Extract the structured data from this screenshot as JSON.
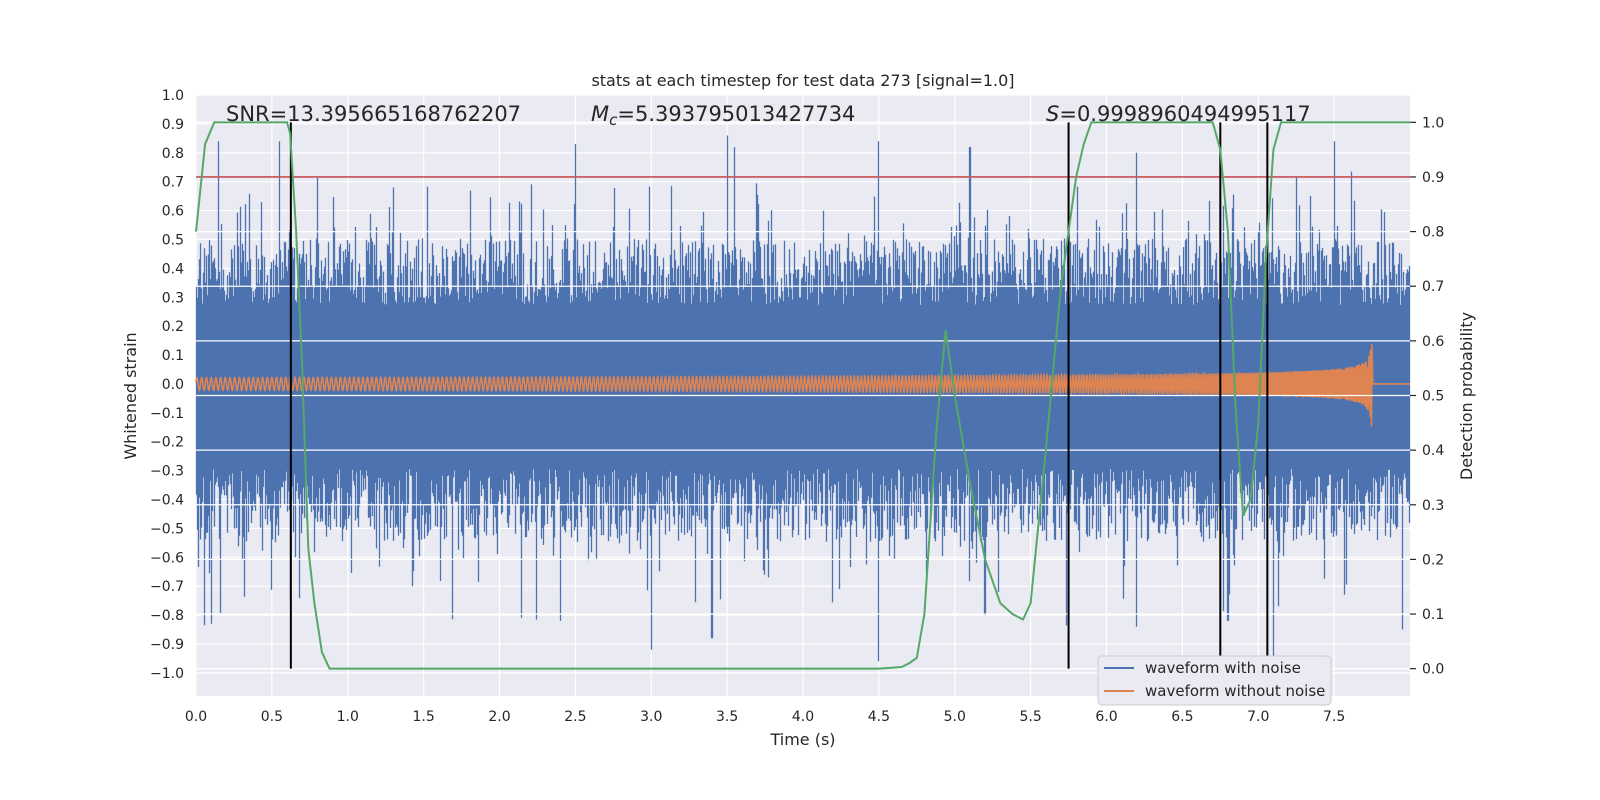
{
  "chart_data": {
    "type": "line",
    "title": "stats at each timestep for test data 273 [signal=1.0]",
    "xlabel": "Time (s)",
    "ylabel": "Whitened strain",
    "y2label": "Detection probability",
    "xlim": [
      0,
      8
    ],
    "ylim": [
      -1.08,
      1.0
    ],
    "y2lim": [
      -0.05,
      1.05
    ],
    "x_ticks": [
      "0.0",
      "0.5",
      "1.0",
      "1.5",
      "2.0",
      "2.5",
      "3.0",
      "3.5",
      "4.0",
      "4.5",
      "5.0",
      "5.5",
      "6.0",
      "6.5",
      "7.0",
      "7.5"
    ],
    "y_ticks": [
      "1.0",
      "0.9",
      "0.8",
      "0.7",
      "0.6",
      "0.5",
      "0.4",
      "0.3",
      "0.2",
      "0.1",
      "0.0",
      "−0.1",
      "−0.2",
      "−0.3",
      "−0.4",
      "−0.5",
      "−0.6",
      "−0.7",
      "−0.8",
      "−0.9",
      "−1.0"
    ],
    "y2_ticks": [
      "1.0",
      "0.9",
      "0.8",
      "0.7",
      "0.6",
      "0.5",
      "0.4",
      "0.3",
      "0.2",
      "0.1",
      "0.0"
    ],
    "annotations": {
      "snr": "SNR=13.395665168762207",
      "mc_symbol": "M",
      "mc_sub": "c",
      "mc_value": "=5.393795013427734",
      "s_symbol": "S",
      "s_value": "=0.9998960494995117"
    },
    "threshold": {
      "value": 0.9,
      "color": "#c44e52"
    },
    "vertical_lines_x": [
      0.625,
      5.75,
      6.75,
      7.06
    ],
    "series": [
      {
        "name": "waveform with noise",
        "color": "#4c72b0",
        "kind": "noise",
        "envelope_typical": 0.42,
        "peaks": [
          [
            0.15,
            0.84
          ],
          [
            0.55,
            0.84
          ],
          [
            1.3,
            0.68
          ],
          [
            2.5,
            0.83
          ],
          [
            3.5,
            0.86
          ],
          [
            3.55,
            0.82
          ],
          [
            4.5,
            0.84
          ],
          [
            5.1,
            0.82
          ],
          [
            6.2,
            0.8
          ],
          [
            6.75,
            0.8
          ],
          [
            7.5,
            0.84
          ]
        ],
        "troughs": [
          [
            0.1,
            -0.83
          ],
          [
            2.4,
            -0.82
          ],
          [
            3.0,
            -0.92
          ],
          [
            3.4,
            -0.88
          ],
          [
            4.5,
            -0.96
          ],
          [
            5.2,
            -0.8
          ],
          [
            6.2,
            -0.84
          ],
          [
            6.8,
            -0.82
          ],
          [
            7.1,
            -0.96
          ],
          [
            7.95,
            -0.85
          ]
        ]
      },
      {
        "name": "waveform without noise",
        "color": "#dd8452",
        "kind": "chirp",
        "amplitude_start": 0.022,
        "amplitude_peak": 0.33,
        "merger_time": 7.75,
        "ringdown_value": 0.0
      },
      {
        "name": "detection probability",
        "color": "#55a868",
        "axis": "right",
        "x": [
          0.0,
          0.06,
          0.12,
          0.2,
          0.3,
          0.45,
          0.6,
          0.62,
          0.66,
          0.7,
          0.74,
          0.78,
          0.83,
          0.88,
          0.95,
          1.0,
          1.5,
          2.0,
          2.5,
          3.0,
          3.5,
          4.0,
          4.5,
          4.65,
          4.7,
          4.75,
          4.8,
          4.88,
          4.94,
          5.0,
          5.1,
          5.2,
          5.3,
          5.38,
          5.45,
          5.5,
          5.6,
          5.7,
          5.75,
          5.8,
          5.85,
          5.9,
          6.0,
          6.5,
          6.7,
          6.75,
          6.8,
          6.85,
          6.9,
          6.95,
          7.0,
          7.05,
          7.1,
          7.15,
          7.2,
          7.5,
          8.0
        ],
        "y": [
          0.8,
          0.96,
          1.0,
          1.0,
          1.0,
          1.0,
          1.0,
          0.98,
          0.8,
          0.55,
          0.22,
          0.12,
          0.03,
          0.0,
          0.0,
          0.0,
          0.0,
          0.0,
          0.0,
          0.0,
          0.0,
          0.0,
          0.0,
          0.003,
          0.01,
          0.02,
          0.1,
          0.44,
          0.62,
          0.5,
          0.34,
          0.2,
          0.12,
          0.1,
          0.09,
          0.12,
          0.4,
          0.7,
          0.8,
          0.9,
          0.96,
          1.0,
          1.0,
          1.0,
          1.0,
          0.95,
          0.8,
          0.48,
          0.28,
          0.31,
          0.45,
          0.75,
          0.95,
          1.0,
          1.0,
          1.0,
          1.0
        ]
      }
    ],
    "legend": {
      "position": "lower-right",
      "entries": [
        {
          "label": "waveform with noise",
          "color": "#4c72b0"
        },
        {
          "label": "waveform without noise",
          "color": "#dd8452"
        }
      ]
    },
    "style": {
      "plot_bg": "#eaeaf2",
      "grid": "#ffffff",
      "vline_color": "#000000"
    }
  }
}
